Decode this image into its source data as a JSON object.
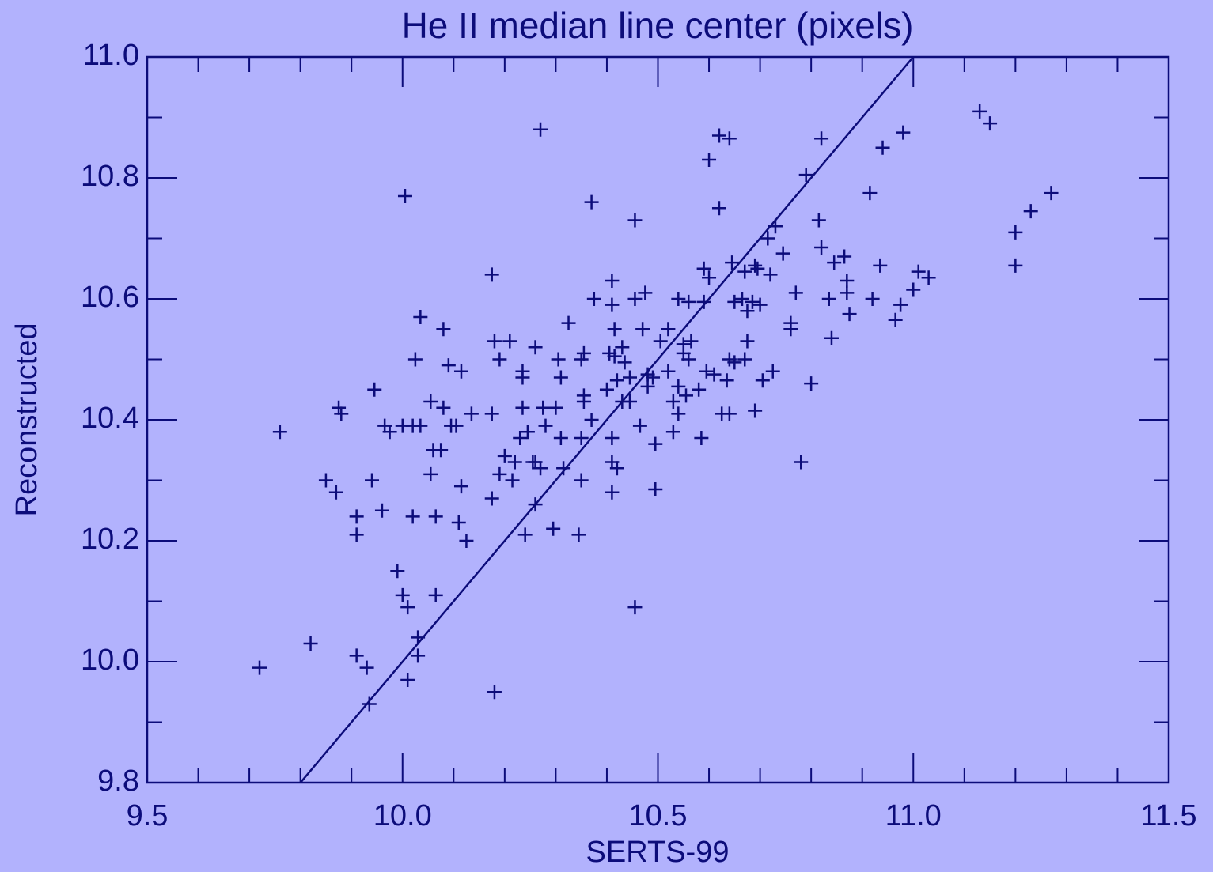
{
  "chart_data": {
    "type": "scatter",
    "title": "He II median line center (pixels)",
    "xlabel": "SERTS-99",
    "ylabel": "Reconstructed",
    "background": "#b2b2fd",
    "color": "#0c0c7a",
    "xlim": [
      9.5,
      11.5
    ],
    "ylim": [
      9.8,
      11.0
    ],
    "xticks": [
      9.5,
      {
        "value": 10,
        "label": "10.0"
      },
      10.5,
      {
        "value": 11,
        "label": "11.0"
      },
      11.5
    ],
    "yticks": [
      9.8,
      {
        "value": 10,
        "label": "10.0"
      },
      10.2,
      10.4,
      10.6,
      10.8,
      {
        "value": 11,
        "label": "11.0"
      }
    ],
    "xminor_ticks": [
      9.6,
      9.7,
      9.8,
      9.9,
      10.1,
      10.2,
      10.3,
      10.4,
      10.6,
      10.7,
      10.8,
      10.9,
      11.1,
      11.2,
      11.3,
      11.4
    ],
    "yminor_ticks": [
      9.9,
      10.1,
      10.3,
      10.5,
      10.7,
      10.9
    ],
    "reference_line": {
      "x": [
        9.8,
        11.0
      ],
      "y": [
        9.8,
        11.0
      ]
    },
    "series": [
      {
        "x": [
          9.72,
          9.76,
          9.82,
          9.85,
          9.87,
          9.875,
          9.88,
          9.91,
          9.91,
          9.91,
          9.93,
          9.935,
          9.94,
          9.945,
          9.96,
          9.965,
          9.975,
          9.99,
          10.0,
          10.0,
          10.005,
          10.01,
          10.01,
          10.02,
          10.02,
          10.025,
          10.03,
          10.03,
          10.035,
          10.035,
          10.055,
          10.055,
          10.06,
          10.065,
          10.065,
          10.075,
          10.08,
          10.08,
          10.09,
          10.095,
          10.105,
          10.11,
          10.115,
          10.115,
          10.125,
          10.135,
          10.175,
          10.175,
          10.175,
          10.18,
          10.18,
          10.19,
          10.19,
          10.2,
          10.21,
          10.215,
          10.22,
          10.23,
          10.235,
          10.235,
          10.235,
          10.24,
          10.245,
          10.255,
          10.26,
          10.26,
          10.26,
          10.27,
          10.27,
          10.275,
          10.28,
          10.295,
          10.3,
          10.305,
          10.31,
          10.31,
          10.315,
          10.325,
          10.345,
          10.35,
          10.35,
          10.35,
          10.355,
          10.355,
          10.355,
          10.37,
          10.37,
          10.375,
          10.4,
          10.405,
          10.41,
          10.41,
          10.41,
          10.41,
          10.41,
          10.415,
          10.415,
          10.42,
          10.42,
          10.43,
          10.43,
          10.435,
          10.445,
          10.445,
          10.455,
          10.455,
          10.455,
          10.465,
          10.47,
          10.475,
          10.48,
          10.48,
          10.49,
          10.495,
          10.495,
          10.505,
          10.52,
          10.52,
          10.53,
          10.53,
          10.54,
          10.54,
          10.54,
          10.55,
          10.55,
          10.555,
          10.56,
          10.56,
          10.565,
          10.58,
          10.585,
          10.59,
          10.59,
          10.595,
          10.6,
          10.6,
          10.61,
          10.62,
          10.62,
          10.625,
          10.635,
          10.64,
          10.64,
          10.64,
          10.645,
          10.65,
          10.65,
          10.665,
          10.67,
          10.67,
          10.675,
          10.675,
          10.685,
          10.69,
          10.69,
          10.695,
          10.7,
          10.705,
          10.715,
          10.72,
          10.725,
          10.73,
          10.745,
          10.76,
          10.76,
          10.77,
          10.78,
          10.79,
          10.8,
          10.815,
          10.82,
          10.82,
          10.835,
          10.84,
          10.845,
          10.865,
          10.87,
          10.87,
          10.875,
          10.915,
          10.92,
          10.935,
          10.94,
          10.965,
          10.975,
          10.98,
          11.0,
          11.01,
          11.03,
          11.13,
          11.15,
          11.2,
          11.2,
          11.23,
          11.27
        ],
        "values": [
          9.99,
          10.38,
          10.03,
          10.3,
          10.28,
          10.42,
          10.41,
          10.01,
          10.24,
          10.21,
          9.99,
          9.93,
          10.3,
          10.45,
          10.25,
          10.39,
          10.38,
          10.15,
          10.11,
          10.39,
          10.77,
          10.09,
          9.97,
          10.39,
          10.24,
          10.5,
          10.04,
          10.01,
          10.57,
          10.39,
          10.43,
          10.31,
          10.35,
          10.24,
          10.11,
          10.35,
          10.42,
          10.55,
          10.49,
          10.39,
          10.39,
          10.23,
          10.48,
          10.29,
          10.2,
          10.41,
          10.41,
          10.27,
          10.64,
          10.53,
          9.95,
          10.31,
          10.5,
          10.34,
          10.53,
          10.3,
          10.33,
          10.37,
          10.47,
          10.48,
          10.42,
          10.21,
          10.38,
          10.33,
          10.52,
          10.26,
          10.33,
          10.32,
          10.88,
          10.42,
          10.39,
          10.22,
          10.42,
          10.5,
          10.47,
          10.37,
          10.32,
          10.56,
          10.21,
          10.5,
          10.37,
          10.3,
          10.44,
          10.51,
          10.43,
          10.4,
          10.76,
          10.6,
          10.45,
          10.51,
          10.63,
          10.59,
          10.37,
          10.28,
          10.33,
          10.55,
          10.505,
          10.465,
          10.32,
          10.52,
          10.43,
          10.495,
          10.43,
          10.47,
          10.73,
          10.6,
          10.09,
          10.39,
          10.55,
          10.61,
          10.475,
          10.455,
          10.47,
          10.36,
          10.285,
          10.53,
          10.48,
          10.55,
          10.43,
          10.38,
          10.455,
          10.6,
          10.41,
          10.51,
          10.525,
          10.44,
          10.595,
          10.5,
          10.53,
          10.45,
          10.37,
          10.595,
          10.65,
          10.48,
          10.83,
          10.635,
          10.475,
          10.75,
          10.87,
          10.41,
          10.465,
          10.865,
          10.41,
          10.5,
          10.66,
          10.595,
          10.495,
          10.6,
          10.645,
          10.5,
          10.53,
          10.58,
          10.595,
          10.415,
          10.655,
          10.65,
          10.59,
          10.465,
          10.7,
          10.64,
          10.48,
          10.72,
          10.675,
          10.55,
          10.56,
          10.61,
          10.33,
          10.805,
          10.46,
          10.73,
          10.865,
          10.685,
          10.6,
          10.535,
          10.66,
          10.67,
          10.61,
          10.63,
          10.575,
          10.775,
          10.6,
          10.655,
          10.85,
          10.565,
          10.59,
          10.875,
          10.615,
          10.645,
          10.635,
          10.91,
          10.89,
          10.71,
          10.655,
          10.745,
          10.775
        ]
      }
    ]
  }
}
